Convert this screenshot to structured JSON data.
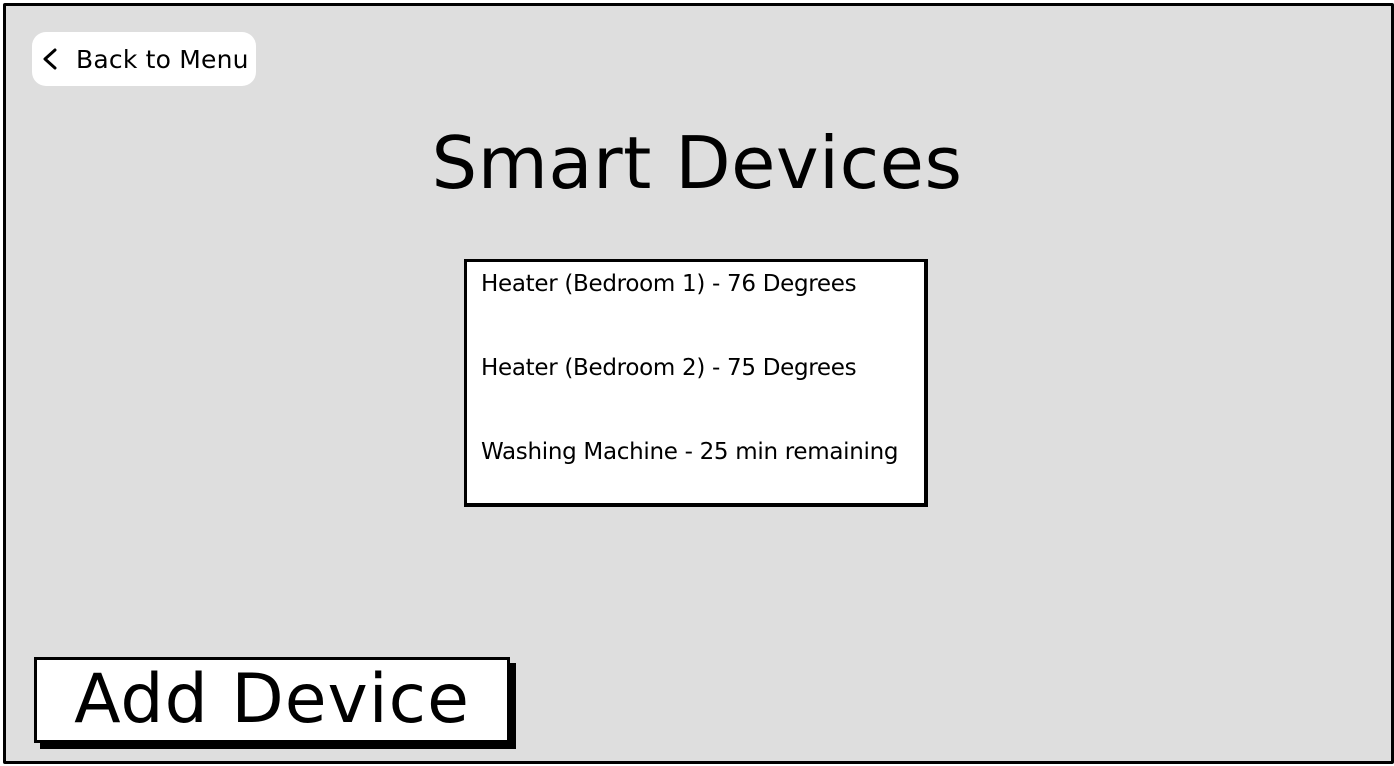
{
  "header": {
    "back_label": "Back to Menu"
  },
  "page": {
    "title": "Smart Devices"
  },
  "devices": [
    {
      "label": "Heater (Bedroom 1) - 76 Degrees"
    },
    {
      "label": "Heater (Bedroom 2) - 75 Degrees"
    },
    {
      "label": "Washing Machine - 25 min remaining"
    }
  ],
  "actions": {
    "add_label": "Add Device"
  },
  "icons": {
    "back": "chevron-left-icon"
  },
  "colors": {
    "background": "#dedede",
    "surface": "#ffffff",
    "ink": "#000000"
  }
}
